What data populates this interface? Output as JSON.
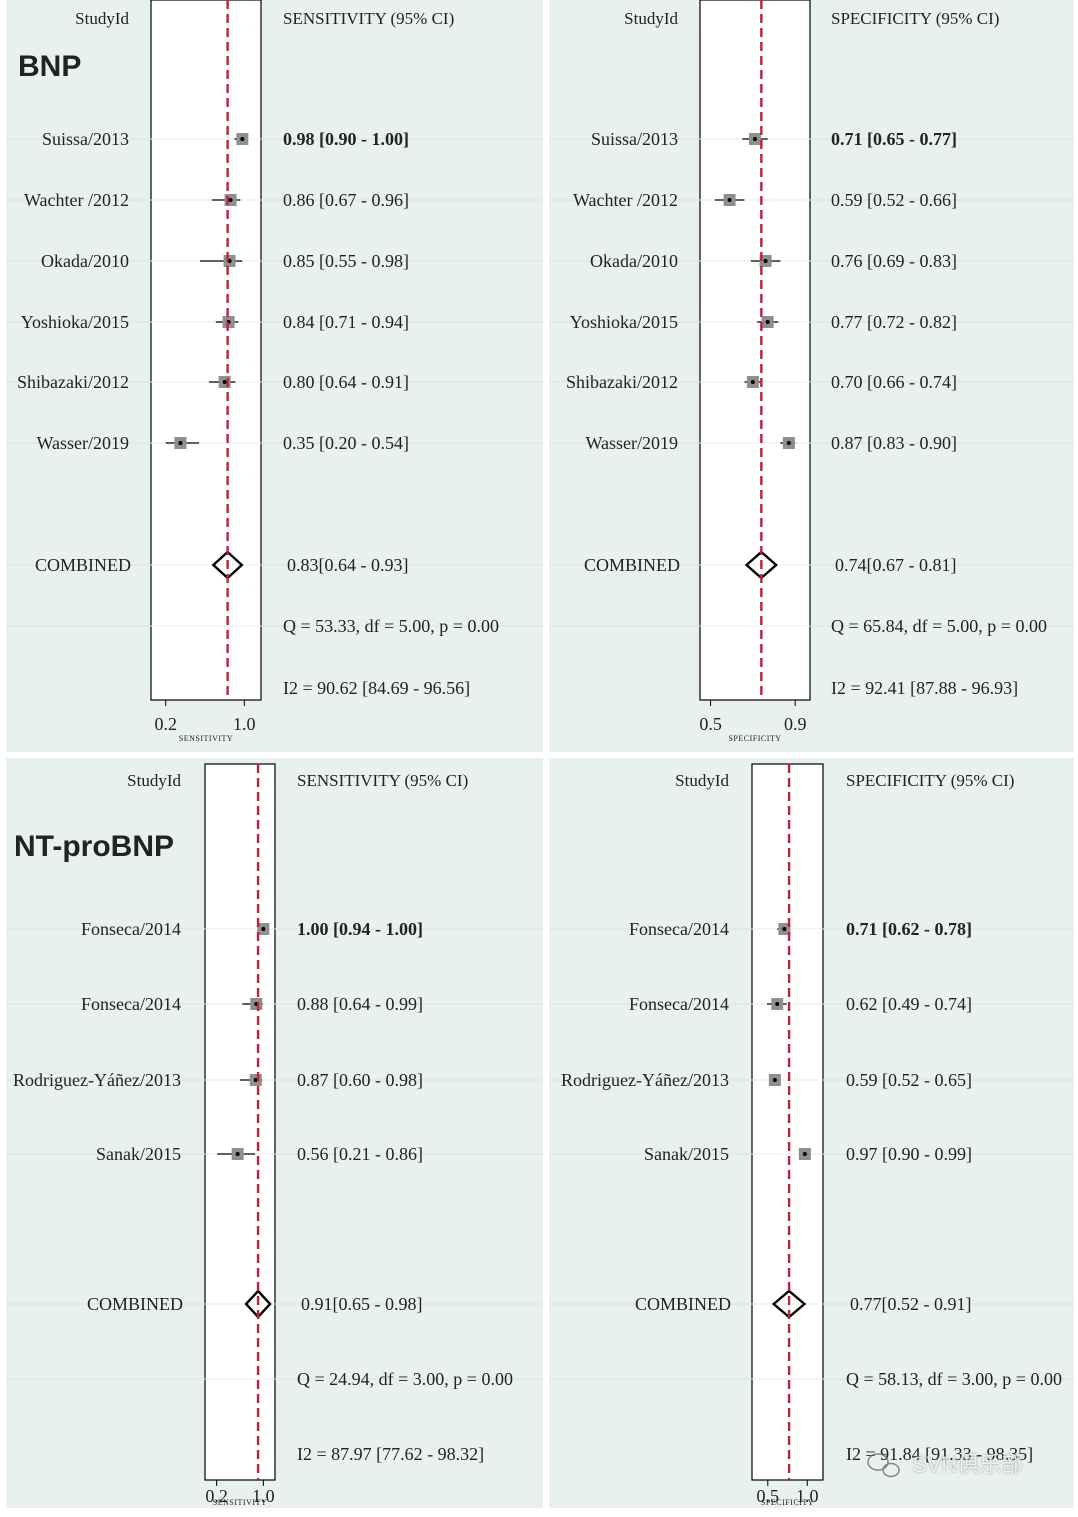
{
  "colors": {
    "background": "#e9f0f0",
    "plot_area": "#ffffff",
    "row_line": "#d6e4e4",
    "reference_line": "#c41e3a",
    "marker": "#8f8f8f",
    "text": "#222222"
  },
  "watermark": "SVN俱乐部",
  "chart_data": [
    {
      "type": "forest",
      "panel_label": "BNP",
      "header_left": "StudyId",
      "header_right": "SENSITIVITY (95% CI)",
      "axis_label": "SENSITIVITY",
      "axis_ticks": [
        "0.2",
        "1.0"
      ],
      "xlim": [
        0.05,
        1.17
      ],
      "reference": 0.83,
      "studies": [
        {
          "name": "Suissa/2013",
          "est": 0.98,
          "lo": 0.9,
          "hi": 1.0,
          "label": "0.98 [0.90 - 1.00]",
          "bold": true
        },
        {
          "name": "Wachter /2012",
          "est": 0.86,
          "lo": 0.67,
          "hi": 0.96,
          "label": "0.86 [0.67 - 0.96]"
        },
        {
          "name": "Okada/2010",
          "est": 0.85,
          "lo": 0.55,
          "hi": 0.98,
          "label": "0.85 [0.55 - 0.98]"
        },
        {
          "name": "Yoshioka/2015",
          "est": 0.84,
          "lo": 0.71,
          "hi": 0.94,
          "label": "0.84 [0.71 - 0.94]"
        },
        {
          "name": "Shibazaki/2012",
          "est": 0.8,
          "lo": 0.64,
          "hi": 0.91,
          "label": "0.80 [0.64 - 0.91]"
        },
        {
          "name": "Wasser/2019",
          "est": 0.35,
          "lo": 0.2,
          "hi": 0.54,
          "label": "0.35 [0.20 - 0.54]"
        }
      ],
      "combined": {
        "name": "COMBINED",
        "est": 0.83,
        "lo": 0.64,
        "hi": 0.93,
        "label": "0.83[0.64 - 0.93]"
      },
      "q_stat": "Q = 53.33, df = 5.00, p =  0.00",
      "i2_stat": "I2 = 90.62 [84.69 - 96.56]"
    },
    {
      "type": "forest",
      "panel_label": "",
      "header_left": "StudyId",
      "header_right": "SPECIFICITY (95% CI)",
      "axis_label": "SPECIFICITY",
      "axis_ticks": [
        "0.5",
        "0.9"
      ],
      "xlim": [
        0.45,
        0.97
      ],
      "reference": 0.74,
      "studies": [
        {
          "name": "Suissa/2013",
          "est": 0.71,
          "lo": 0.65,
          "hi": 0.77,
          "label": "0.71 [0.65 - 0.77]",
          "bold": true
        },
        {
          "name": "Wachter /2012",
          "est": 0.59,
          "lo": 0.52,
          "hi": 0.66,
          "label": "0.59 [0.52 - 0.66]"
        },
        {
          "name": "Okada/2010",
          "est": 0.76,
          "lo": 0.69,
          "hi": 0.83,
          "label": "0.76 [0.69 - 0.83]"
        },
        {
          "name": "Yoshioka/2015",
          "est": 0.77,
          "lo": 0.72,
          "hi": 0.82,
          "label": "0.77 [0.72 - 0.82]"
        },
        {
          "name": "Shibazaki/2012",
          "est": 0.7,
          "lo": 0.66,
          "hi": 0.74,
          "label": "0.70 [0.66 - 0.74]"
        },
        {
          "name": "Wasser/2019",
          "est": 0.87,
          "lo": 0.83,
          "hi": 0.9,
          "label": "0.87 [0.83 - 0.90]"
        }
      ],
      "combined": {
        "name": "COMBINED",
        "est": 0.74,
        "lo": 0.67,
        "hi": 0.81,
        "label": "0.74[0.67 - 0.81]"
      },
      "q_stat": "Q = 65.84, df = 5.00, p =  0.00",
      "i2_stat": "I2 = 92.41 [87.88 - 96.93]"
    },
    {
      "type": "forest",
      "panel_label": "NT-proBNP",
      "header_left": "StudyId",
      "header_right": "SENSITIVITY (95% CI)",
      "axis_label": "SENSITIVITY",
      "axis_ticks": [
        "0.2",
        "1.0"
      ],
      "xlim": [
        0.0,
        1.2
      ],
      "reference": 0.91,
      "studies": [
        {
          "name": "Fonseca/2014",
          "est": 1.0,
          "lo": 0.94,
          "hi": 1.0,
          "label": "1.00 [0.94 - 1.00]",
          "bold": true
        },
        {
          "name": "Fonseca/2014",
          "est": 0.88,
          "lo": 0.64,
          "hi": 0.99,
          "label": "0.88 [0.64 - 0.99]"
        },
        {
          "name": "Rodriguez-Yáñez/2013",
          "est": 0.87,
          "lo": 0.6,
          "hi": 0.98,
          "label": "0.87 [0.60 - 0.98]"
        },
        {
          "name": "Sanak/2015",
          "est": 0.56,
          "lo": 0.21,
          "hi": 0.86,
          "label": "0.56 [0.21 - 0.86]"
        }
      ],
      "combined": {
        "name": "COMBINED",
        "est": 0.91,
        "lo": 0.65,
        "hi": 0.98,
        "label": "0.91[0.65 - 0.98]"
      },
      "q_stat": "Q = 24.94, df = 3.00, p =  0.00",
      "i2_stat": "I2 = 87.97 [77.62 - 98.32]"
    },
    {
      "type": "forest",
      "panel_label": "",
      "header_left": "StudyId",
      "header_right": "SPECIFICITY (95% CI)",
      "axis_label": "SPECIFICITY",
      "axis_ticks": [
        "0.5",
        "1.0"
      ],
      "xlim": [
        0.3,
        1.2
      ],
      "reference": 0.77,
      "studies": [
        {
          "name": "Fonseca/2014",
          "est": 0.71,
          "lo": 0.62,
          "hi": 0.78,
          "label": "0.71 [0.62 - 0.78]",
          "bold": true
        },
        {
          "name": "Fonseca/2014",
          "est": 0.62,
          "lo": 0.49,
          "hi": 0.74,
          "label": "0.62 [0.49 - 0.74]"
        },
        {
          "name": "Rodriguez-Yáñez/2013",
          "est": 0.59,
          "lo": 0.52,
          "hi": 0.65,
          "label": "0.59 [0.52 - 0.65]"
        },
        {
          "name": "Sanak/2015",
          "est": 0.97,
          "lo": 0.9,
          "hi": 0.99,
          "label": "0.97 [0.90 - 0.99]"
        }
      ],
      "combined": {
        "name": "COMBINED",
        "est": 0.77,
        "lo": 0.52,
        "hi": 0.91,
        "label": "0.77[0.52 - 0.91]"
      },
      "q_stat": "Q = 58.13, df = 3.00, p =  0.00",
      "i2_stat": "I2 = 91.84 [91.33 - 98.35]"
    }
  ]
}
